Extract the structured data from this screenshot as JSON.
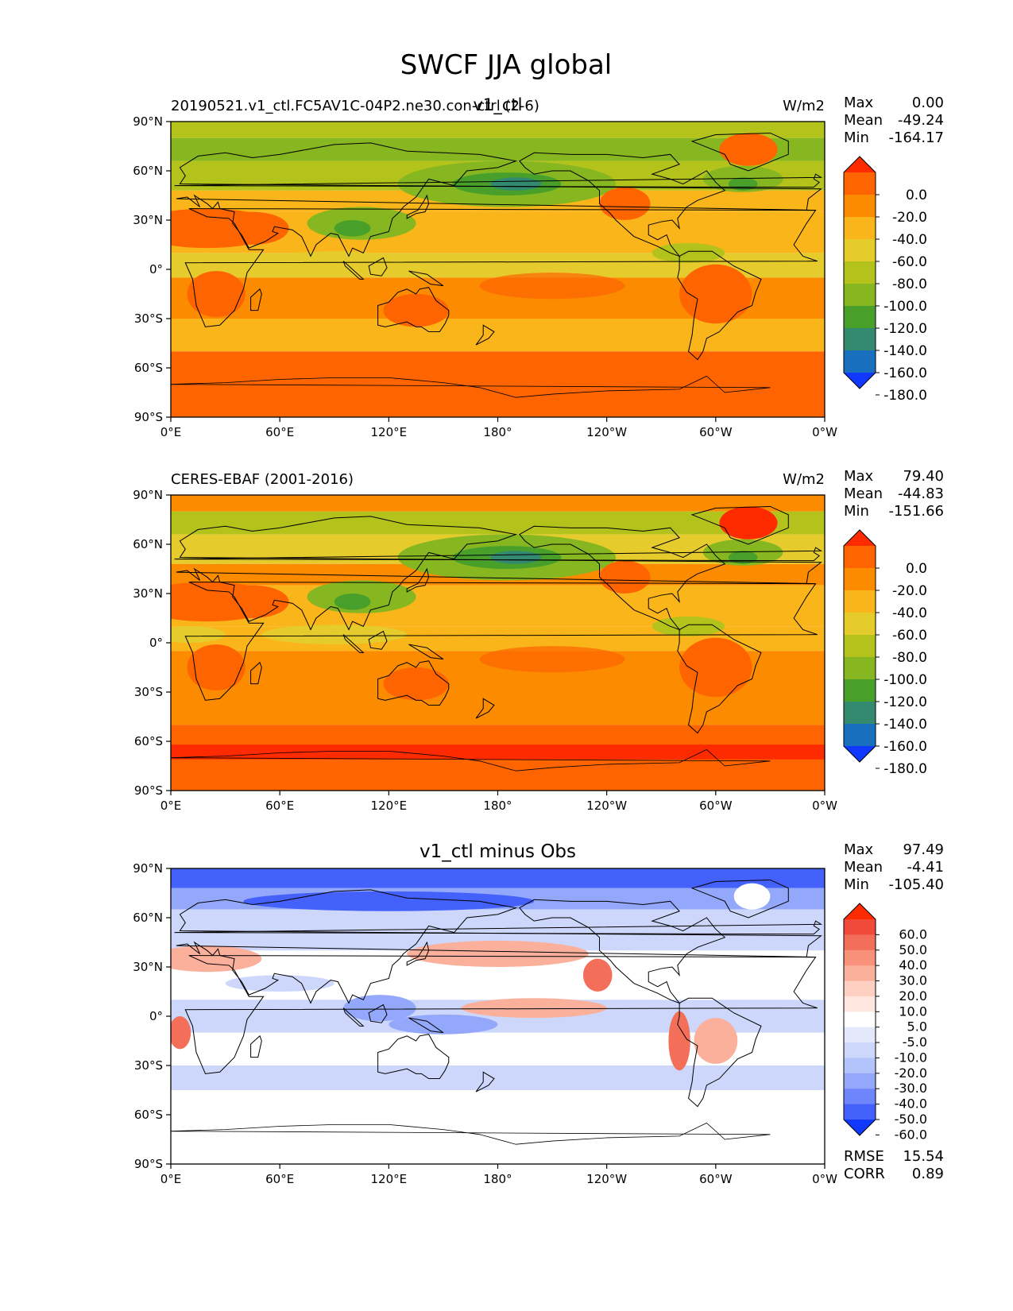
{
  "figure": {
    "title": "SWCF JJA global"
  },
  "axes": {
    "lat_ticks": [
      "90°N",
      "60°N",
      "30°N",
      "0°",
      "30°S",
      "60°S",
      "90°S"
    ],
    "lon_ticks": [
      "0°E",
      "60°E",
      "120°E",
      "180°",
      "120°W",
      "60°W",
      "0°W"
    ]
  },
  "panels": [
    {
      "left_title": "20190521.v1_ctl.FC5AV1C-04P2.ne30.con-ctrl (2-6)",
      "center_title": "v1_ctl",
      "units": "W/m2",
      "stats": {
        "max_label": "Max",
        "max": "0.00",
        "mean_label": "Mean",
        "mean": "-49.24",
        "min_label": "Min",
        "min": "-164.17"
      },
      "colorbar": {
        "labels": [
          "0.0",
          "-20.0",
          "-40.0",
          "-60.0",
          "-80.0",
          "-100.0",
          "-120.0",
          "-140.0",
          "-160.0",
          "-180.0"
        ],
        "colors": [
          "#fe2a00",
          "#fe6400",
          "#fc8b00",
          "#f9b51a",
          "#e5cb2c",
          "#b4c31c",
          "#86b620",
          "#48a02a",
          "#348a6f",
          "#176fbd",
          "#1038ff"
        ]
      }
    },
    {
      "left_title": "CERES-EBAF (2001-2016)",
      "center_title": "",
      "units": "W/m2",
      "stats": {
        "max_label": "Max",
        "max": "79.40",
        "mean_label": "Mean",
        "mean": "-44.83",
        "min_label": "Min",
        "min": "-151.66"
      },
      "colorbar": {
        "labels": [
          "0.0",
          "-20.0",
          "-40.0",
          "-60.0",
          "-80.0",
          "-100.0",
          "-120.0",
          "-140.0",
          "-160.0",
          "-180.0"
        ],
        "colors": [
          "#fe2a00",
          "#fe6400",
          "#fc8b00",
          "#f9b51a",
          "#e5cb2c",
          "#b4c31c",
          "#86b620",
          "#48a02a",
          "#348a6f",
          "#176fbd",
          "#1038ff"
        ]
      }
    },
    {
      "left_title": "",
      "center_title": "v1_ctl minus Obs",
      "units": "",
      "stats": {
        "max_label": "Max",
        "max": "97.49",
        "mean_label": "Mean",
        "mean": "-4.41",
        "min_label": "Min",
        "min": "-105.40"
      },
      "colorbar": {
        "labels": [
          "60.0",
          "50.0",
          "40.0",
          "30.0",
          "20.0",
          "10.0",
          "5.0",
          "-5.0",
          "-10.0",
          "-20.0",
          "-30.0",
          "-40.0",
          "-50.0",
          "-60.0"
        ],
        "colors": [
          "#fe2a00",
          "#f04a3a",
          "#f46f5a",
          "#f8917a",
          "#fbb09c",
          "#fdd0c1",
          "#ffe6de",
          "#ffffff",
          "#e3e9fb",
          "#ccd7fb",
          "#b3c3fb",
          "#94a8fb",
          "#6e85fb",
          "#4461fb",
          "#1038ff"
        ]
      },
      "rmse_label": "RMSE",
      "rmse": "15.54",
      "corr_label": "CORR",
      "corr": "0.89"
    }
  ],
  "map_colors": {
    "ocean_mid": "#f9b51a",
    "ocean_orange": "#fc8b00",
    "deep_orange": "#fe6400",
    "red": "#fe2a00",
    "yellow": "#e5cb2c",
    "olive": "#b4c31c",
    "green": "#86b620",
    "darkgreen": "#48a02a",
    "teal": "#348a6f",
    "diff_white": "#ffffff",
    "diff_lightblue": "#ccd7fb",
    "diff_blue": "#94a8fb",
    "diff_darkblue": "#4461fb",
    "diff_lightred": "#fbb09c",
    "diff_red": "#f46f5a"
  }
}
